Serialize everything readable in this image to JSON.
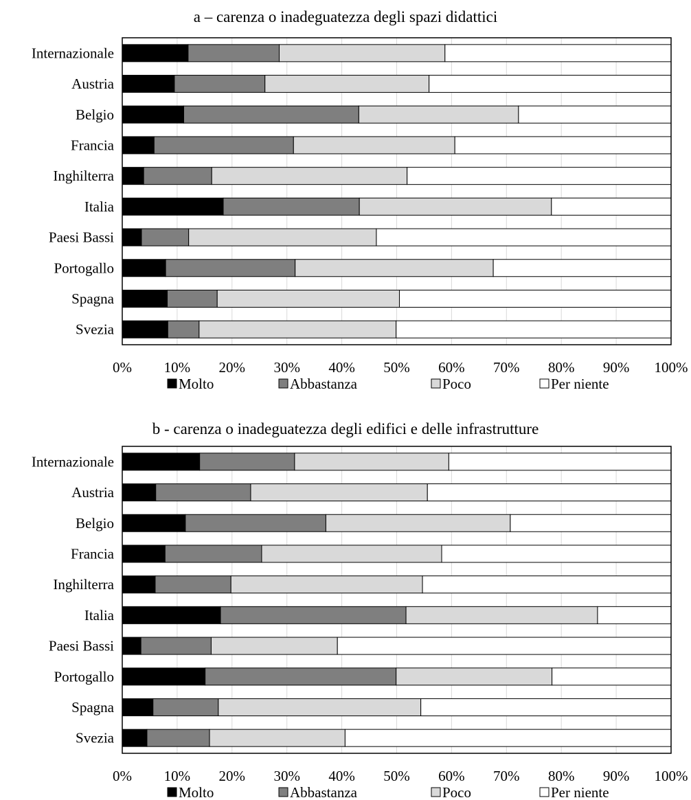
{
  "colors": {
    "Molto": "#000000",
    "Abbastanza": "#7f7f7f",
    "Poco": "#d9d9d9",
    "Per niente": "#ffffff",
    "grid": "#d9d9d9",
    "border": "#000000"
  },
  "chart_data": [
    {
      "type": "bar",
      "orientation": "horizontal",
      "stacked": "percent",
      "title": "a – carenza o inadeguatezza degli spazi didattici",
      "categories": [
        "Internazionale",
        "Austria",
        "Belgio",
        "Francia",
        "Inghilterra",
        "Italia",
        "Paesi Bassi",
        "Portogallo",
        "Spagna",
        "Svezia"
      ],
      "series": [
        {
          "name": "Molto",
          "values": [
            12,
            9.5,
            11.2,
            5.8,
            3.9,
            18.4,
            3.5,
            7.9,
            8.2,
            8.3
          ]
        },
        {
          "name": "Abbastanza",
          "values": [
            16.6,
            16.5,
            31.9,
            25.4,
            12.4,
            24.8,
            8.6,
            23.6,
            9.1,
            5.7
          ]
        },
        {
          "name": "Poco",
          "values": [
            30.2,
            29.9,
            29.1,
            29.4,
            35.6,
            35,
            34.2,
            36.1,
            33.2,
            35.9
          ]
        },
        {
          "name": "Per niente",
          "values": [
            41.2,
            44.1,
            27.8,
            39.4,
            48.1,
            21.8,
            53.7,
            32.4,
            49.5,
            50.1
          ]
        }
      ],
      "xticks": [
        "0%",
        "10%",
        "20%",
        "30%",
        "40%",
        "50%",
        "60%",
        "70%",
        "80%",
        "90%",
        "100%"
      ],
      "xlim": [
        0,
        100
      ],
      "grid": true,
      "legend": {
        "position": "bottom",
        "entries": [
          "Molto",
          "Abbastanza",
          "Poco",
          "Per niente"
        ]
      }
    },
    {
      "type": "bar",
      "orientation": "horizontal",
      "stacked": "percent",
      "title": "b - carenza o inadeguatezza degli edifici e delle infrastrutture",
      "categories": [
        "Internazionale",
        "Austria",
        "Belgio",
        "Francia",
        "Inghilterra",
        "Italia",
        "Paesi Bassi",
        "Portogallo",
        "Spagna",
        "Svezia"
      ],
      "series": [
        {
          "name": "Molto",
          "values": [
            14.1,
            6.1,
            11.5,
            7.8,
            6.0,
            17.9,
            3.4,
            15.1,
            5.6,
            4.5
          ]
        },
        {
          "name": "Abbastanza",
          "values": [
            17.3,
            17.3,
            25.6,
            17.6,
            13.8,
            33.8,
            12.8,
            34.8,
            11.9,
            11.4
          ]
        },
        {
          "name": "Poco",
          "values": [
            28.1,
            32.2,
            33.6,
            32.8,
            34.9,
            34.9,
            23.0,
            28.4,
            36.9,
            24.7
          ]
        },
        {
          "name": "Per niente",
          "values": [
            40.5,
            44.4,
            29.3,
            41.8,
            45.3,
            13.4,
            60.8,
            21.7,
            45.6,
            59.4
          ]
        }
      ],
      "xticks": [
        "0%",
        "10%",
        "20%",
        "30%",
        "40%",
        "50%",
        "60%",
        "70%",
        "80%",
        "90%",
        "100%"
      ],
      "xlim": [
        0,
        100
      ],
      "grid": true,
      "legend": {
        "position": "bottom",
        "entries": [
          "Molto",
          "Abbastanza",
          "Poco",
          "Per niente"
        ]
      }
    }
  ]
}
